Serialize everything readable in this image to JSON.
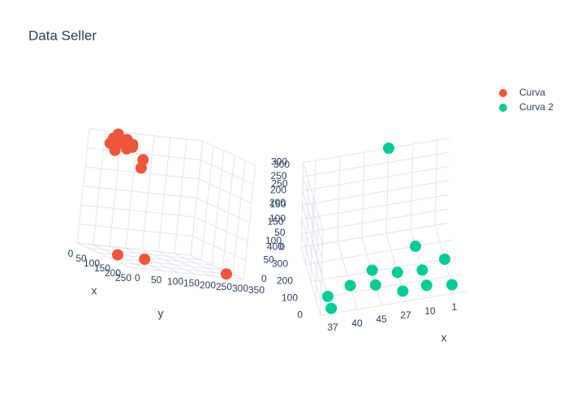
{
  "chart_data": [
    {
      "type": "scatter3d",
      "title": "Data Seller",
      "series": [
        {
          "name": "Curva",
          "color": "#EF553B",
          "x": [
            40,
            50,
            30,
            60,
            45,
            70,
            55,
            80,
            35,
            65,
            90,
            100,
            120,
            200
          ],
          "y": [
            50,
            60,
            70,
            80,
            55,
            90,
            100,
            120,
            45,
            75,
            110,
            60,
            130,
            330
          ],
          "z": [
            290,
            280,
            300,
            270,
            260,
            285,
            275,
            250,
            275,
            295,
            230,
            0,
            0,
            0
          ]
        }
      ],
      "xlim": [
        0,
        250
      ],
      "ylim": [
        0,
        350
      ],
      "zlim": [
        0,
        300
      ],
      "xticks": [
        0,
        50,
        100,
        150,
        200,
        250
      ],
      "yticks": [
        0,
        50,
        100,
        150,
        200,
        250,
        300,
        350
      ],
      "zticks": [
        0,
        50,
        100,
        150,
        200,
        250,
        300
      ],
      "xlabel": "x",
      "ylabel": "y"
    },
    {
      "type": "scatter3d",
      "series": [
        {
          "name": "Curva 2",
          "color": "#00CC96",
          "x": [
            "37",
            "37",
            "40",
            "45",
            "45",
            "27",
            "27",
            "10",
            "10",
            "10",
            "1",
            "1",
            "27"
          ],
          "y": [
            100,
            30,
            140,
            120,
            190,
            60,
            170,
            70,
            160,
            300,
            50,
            200,
            400
          ],
          "z": [
            0,
            0,
            0,
            0,
            10,
            0,
            0,
            0,
            0,
            0,
            0,
            0,
            300
          ]
        }
      ],
      "xcategories": [
        "37",
        "40",
        "45",
        "27",
        "10",
        "1"
      ],
      "ylim": [
        0,
        400
      ],
      "zlim": [
        0,
        300
      ],
      "yticks": [
        0,
        100,
        200,
        300,
        400
      ],
      "zticks": [
        0,
        50,
        100,
        150,
        200,
        250,
        300
      ],
      "xlabel": "x"
    }
  ]
}
